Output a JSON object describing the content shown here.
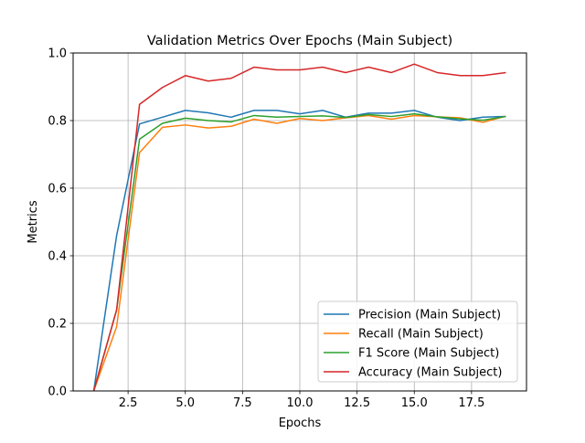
{
  "chart_data": {
    "type": "line",
    "title": "Validation Metrics Over Epochs (Main Subject)",
    "xlabel": "Epochs",
    "ylabel": "Metrics",
    "xlim": [
      0.1,
      19.9
    ],
    "ylim": [
      0.0,
      1.0
    ],
    "grid": true,
    "legend_position": "lower-right",
    "x_ticks": [
      2.5,
      5.0,
      7.5,
      10.0,
      12.5,
      15.0,
      17.5
    ],
    "x_tick_labels": [
      "2.5",
      "5.0",
      "7.5",
      "10.0",
      "12.5",
      "15.0",
      "17.5"
    ],
    "y_ticks": [
      0.0,
      0.2,
      0.4,
      0.6,
      0.8,
      1.0
    ],
    "y_tick_labels": [
      "0.0",
      "0.2",
      "0.4",
      "0.6",
      "0.8",
      "1.0"
    ],
    "x": [
      1,
      2,
      3,
      4,
      5,
      6,
      7,
      8,
      9,
      10,
      11,
      12,
      13,
      14,
      15,
      16,
      17,
      18,
      19
    ],
    "series": [
      {
        "name": "Precision (Main Subject)",
        "color": "#1f77b4",
        "values": [
          0.0,
          0.46,
          0.79,
          0.81,
          0.83,
          0.823,
          0.81,
          0.83,
          0.83,
          0.82,
          0.83,
          0.81,
          0.822,
          0.822,
          0.83,
          0.81,
          0.8,
          0.81,
          0.812
        ]
      },
      {
        "name": "Recall (Main Subject)",
        "color": "#ff7f0e",
        "values": [
          0.0,
          0.19,
          0.705,
          0.78,
          0.787,
          0.778,
          0.783,
          0.804,
          0.792,
          0.806,
          0.8,
          0.808,
          0.815,
          0.804,
          0.815,
          0.811,
          0.808,
          0.795,
          0.813
        ]
      },
      {
        "name": "F1 Score (Main Subject)",
        "color": "#2ca02c",
        "values": [
          0.0,
          0.24,
          0.745,
          0.792,
          0.807,
          0.8,
          0.796,
          0.815,
          0.81,
          0.812,
          0.814,
          0.809,
          0.818,
          0.812,
          0.82,
          0.811,
          0.805,
          0.801,
          0.812
        ]
      },
      {
        "name": "Accuracy (Main Subject)",
        "color": "#d62728",
        "values": [
          0.0,
          0.24,
          0.848,
          0.898,
          0.933,
          0.917,
          0.925,
          0.958,
          0.95,
          0.95,
          0.958,
          0.942,
          0.958,
          0.942,
          0.967,
          0.942,
          0.933,
          0.933,
          0.942
        ]
      }
    ]
  }
}
